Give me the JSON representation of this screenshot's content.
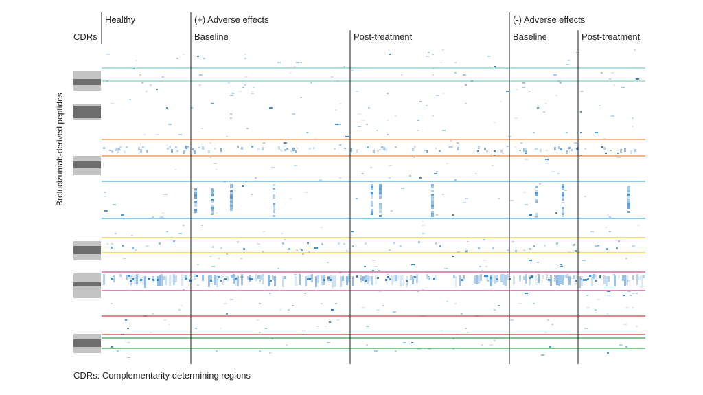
{
  "chart_data": {
    "type": "heatmap",
    "ylabel": "Brolucizumab-derived peptides",
    "cdr_header": "CDRs",
    "footnote": "CDRs: Complementarity determining regions",
    "groups": [
      {
        "label": "Healthy",
        "sub": [
          ""
        ]
      },
      {
        "label": "(+) Adverse effects",
        "sub": [
          "Baseline",
          "Post-treatment"
        ]
      },
      {
        "label": "(-) Adverse effects",
        "sub": [
          "Baseline",
          "Post-treatment"
        ]
      }
    ],
    "cdr_region_colors": [
      "#7ecfd4",
      "#f0883a",
      "#4ea8d8",
      "#f2c81a",
      "#d9409a",
      "#e0343c",
      "#2aa84a"
    ],
    "heat_color": "#2b7fc9",
    "value_scale": "none printed",
    "note": "Sparse heatmap of peptide signal intensity across patient samples"
  }
}
